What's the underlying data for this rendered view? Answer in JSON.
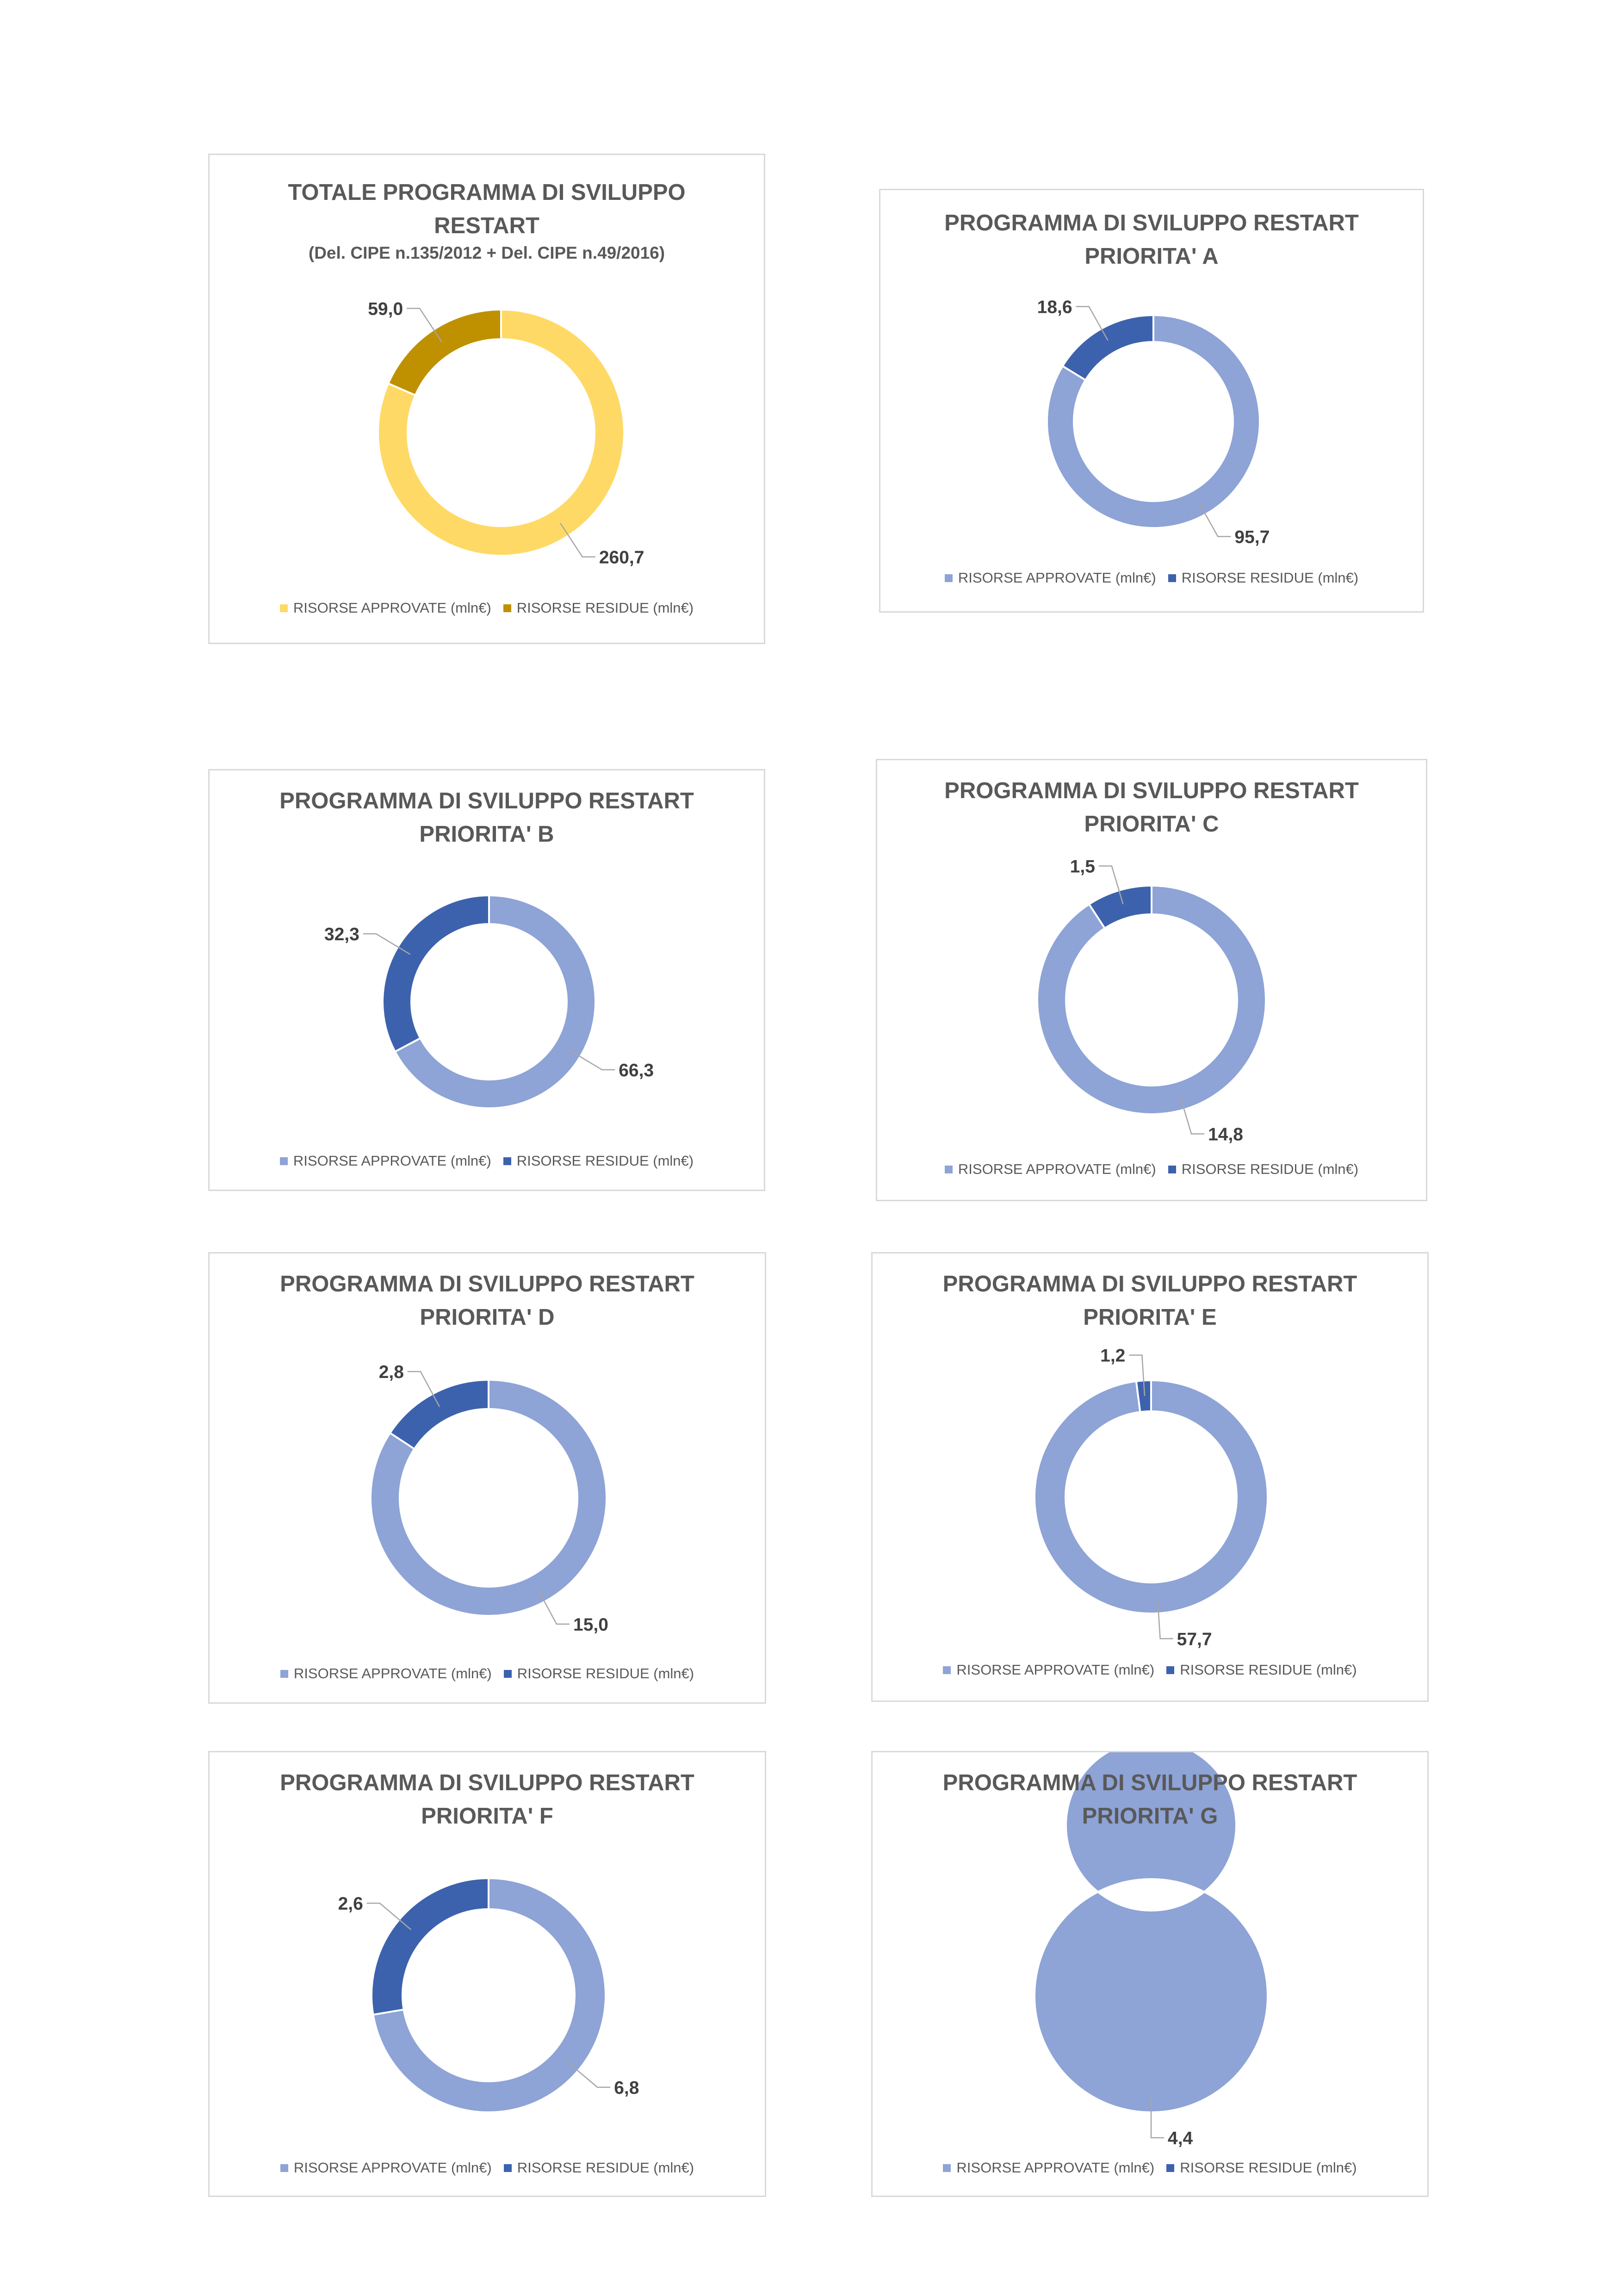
{
  "legend_labels": [
    "RISORSE APPROVATE (mln€)",
    "RISORSE RESIDUE (mln€)"
  ],
  "chart_data": [
    {
      "type": "pie",
      "variant": "doughnut",
      "title_lines": [
        "TOTALE PROGRAMMA DI SVILUPPO",
        "RESTART"
      ],
      "subtitle": "(Del. CIPE n.135/2012 + Del. CIPE n.49/2016)",
      "legend_position": "bottom",
      "series": [
        {
          "name": "RISORSE APPROVATE (mln€)",
          "value": 260.7,
          "label": "260,7",
          "color": "#ffd966"
        },
        {
          "name": "RISORSE RESIDUE (mln€)",
          "value": 59.0,
          "label": "59,0",
          "color": "#bf9000"
        }
      ]
    },
    {
      "type": "pie",
      "variant": "doughnut",
      "title_lines": [
        "PROGRAMMA DI SVILUPPO RESTART",
        "PRIORITA' A"
      ],
      "legend_position": "bottom",
      "series": [
        {
          "name": "RISORSE APPROVATE (mln€)",
          "value": 95.7,
          "label": "95,7",
          "color": "#8ea3d6"
        },
        {
          "name": "RISORSE RESIDUE (mln€)",
          "value": 18.6,
          "label": "18,6",
          "color": "#3d62ad"
        }
      ]
    },
    {
      "type": "pie",
      "variant": "doughnut",
      "title_lines": [
        "PROGRAMMA DI SVILUPPO RESTART",
        "PRIORITA' B"
      ],
      "legend_position": "bottom",
      "series": [
        {
          "name": "RISORSE APPROVATE (mln€)",
          "value": 66.3,
          "label": "66,3",
          "color": "#8ea3d6"
        },
        {
          "name": "RISORSE RESIDUE (mln€)",
          "value": 32.3,
          "label": "32,3",
          "color": "#3d62ad"
        }
      ]
    },
    {
      "type": "pie",
      "variant": "doughnut",
      "title_lines": [
        "PROGRAMMA DI SVILUPPO RESTART",
        "PRIORITA' C"
      ],
      "legend_position": "bottom",
      "series": [
        {
          "name": "RISORSE APPROVATE (mln€)",
          "value": 14.8,
          "label": "14,8",
          "color": "#8ea3d6"
        },
        {
          "name": "RISORSE RESIDUE (mln€)",
          "value": 1.5,
          "label": "1,5",
          "color": "#3d62ad"
        }
      ]
    },
    {
      "type": "pie",
      "variant": "doughnut",
      "title_lines": [
        "PROGRAMMA DI SVILUPPO RESTART",
        "PRIORITA' D"
      ],
      "legend_position": "bottom",
      "series": [
        {
          "name": "RISORSE APPROVATE (mln€)",
          "value": 15.0,
          "label": "15,0",
          "color": "#8ea3d6"
        },
        {
          "name": "RISORSE RESIDUE (mln€)",
          "value": 2.8,
          "label": "2,8",
          "color": "#3d62ad"
        }
      ]
    },
    {
      "type": "pie",
      "variant": "doughnut",
      "title_lines": [
        "PROGRAMMA DI SVILUPPO RESTART",
        "PRIORITA' E"
      ],
      "legend_position": "bottom",
      "series": [
        {
          "name": "RISORSE APPROVATE (mln€)",
          "value": 57.7,
          "label": "57,7",
          "color": "#8ea3d6"
        },
        {
          "name": "RISORSE RESIDUE (mln€)",
          "value": 1.2,
          "label": "1,2",
          "color": "#3d62ad"
        }
      ]
    },
    {
      "type": "pie",
      "variant": "doughnut",
      "title_lines": [
        "PROGRAMMA DI SVILUPPO RESTART",
        "PRIORITA' F"
      ],
      "legend_position": "bottom",
      "series": [
        {
          "name": "RISORSE APPROVATE (mln€)",
          "value": 6.8,
          "label": "6,8",
          "color": "#8ea3d6"
        },
        {
          "name": "RISORSE RESIDUE (mln€)",
          "value": 2.6,
          "label": "2,6",
          "color": "#3d62ad"
        }
      ]
    },
    {
      "type": "pie",
      "variant": "doughnut",
      "title_lines": [
        "PROGRAMMA DI SVILUPPO RESTART",
        "PRIORITA' G"
      ],
      "legend_position": "bottom",
      "series": [
        {
          "name": "RISORSE APPROVATE (mln€)",
          "value": 4.4,
          "label": "4,4",
          "color": "#8ea3d6"
        },
        {
          "name": "RISORSE RESIDUE (mln€)",
          "value": 0,
          "label": "",
          "color": "#3d62ad"
        }
      ]
    }
  ]
}
